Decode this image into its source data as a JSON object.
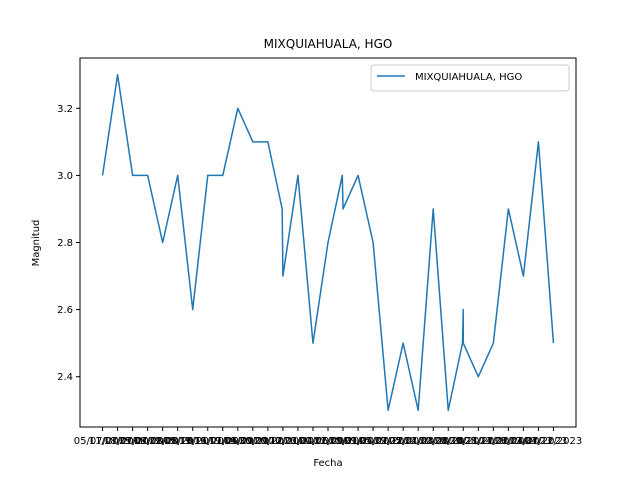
{
  "chart_data": {
    "type": "line",
    "title": "MIXQUIAHUALA, HGO",
    "xlabel": "Fecha",
    "ylabel": "Magnitud",
    "ylim": [
      2.25,
      3.35
    ],
    "yticks": [
      2.4,
      2.6,
      2.8,
      3.0,
      3.2
    ],
    "ytick_labels": [
      "2.4",
      "2.6",
      "2.8",
      "3.0",
      "3.2"
    ],
    "legend_position": "top-right",
    "grid": false,
    "x_categories": [
      "05/07/2019",
      "11/07/2019",
      "18/07/2019",
      "25/07/2019",
      "08/08/2019",
      "22/08/2019",
      "05/10/2019",
      "17/11/2019",
      "16/01/2020",
      "17/05/2020",
      "04/09/2020",
      "30/09/2020",
      "20/12/2020",
      "12/01/2021",
      "23/04/2021",
      "01/06/2021",
      "12/09/2021",
      "18/01/2022",
      "09/04/2022",
      "05/07/2022",
      "19/12/2022",
      "05/01/2023",
      "14/03/2023",
      "10/08/2023",
      "20/10/2023",
      "30/11/2023",
      "28/12/2023",
      "14/02/2023",
      "26/04/2023",
      "12/07/2023",
      "04/12/2023"
    ],
    "series": [
      {
        "name": "MIXQUIAHUALA, HGO",
        "color": "#1f77b4",
        "points": [
          [
            0,
            3.0
          ],
          [
            1,
            3.3
          ],
          [
            2,
            3.0
          ],
          [
            3,
            3.0
          ],
          [
            4,
            2.8
          ],
          [
            5,
            3.0
          ],
          [
            6,
            2.6
          ],
          [
            7,
            3.0
          ],
          [
            8,
            3.0
          ],
          [
            9,
            3.2
          ],
          [
            10,
            3.1
          ],
          [
            11,
            3.1
          ],
          [
            11.95,
            2.9
          ],
          [
            12,
            2.7
          ],
          [
            13,
            3.0
          ],
          [
            14,
            2.5
          ],
          [
            15,
            2.8
          ],
          [
            15.95,
            3.0
          ],
          [
            16,
            2.9
          ],
          [
            17,
            3.0
          ],
          [
            18,
            2.8
          ],
          [
            19,
            2.3
          ],
          [
            20,
            2.5
          ],
          [
            21,
            2.3
          ],
          [
            22,
            2.9
          ],
          [
            23,
            2.3
          ],
          [
            23.95,
            2.5
          ],
          [
            24,
            2.6
          ],
          [
            24,
            2.5
          ],
          [
            25,
            2.4
          ],
          [
            26,
            2.5
          ],
          [
            27,
            2.9
          ],
          [
            28,
            2.7
          ],
          [
            29,
            3.1
          ],
          [
            30,
            2.5
          ]
        ]
      }
    ]
  }
}
